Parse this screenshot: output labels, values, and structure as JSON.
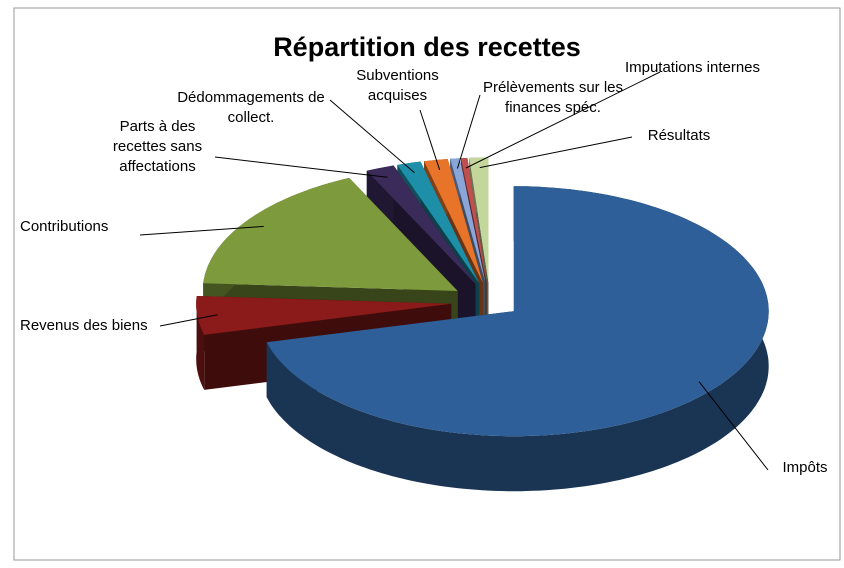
{
  "chart_data": {
    "type": "pie",
    "title": "Répartition des recettes",
    "categories": [
      "Impôts",
      "Revenus des biens",
      "Contributions",
      "Parts à des recettes sans affectations",
      "Dédommagements de collect.",
      "Subventions acquises",
      "Prélèvements sur les finances spéc.",
      "Imputations internes",
      "Résultats"
    ],
    "values": [
      71,
      5,
      17,
      1.8,
      1.5,
      1.5,
      0.6,
      0.4,
      1.2
    ],
    "colors": [
      "#2f5f98",
      "#8b1a1a",
      "#7d9a3c",
      "#3b2b5a",
      "#1e8fa8",
      "#e8742a",
      "#8aa6d8",
      "#c0504d",
      "#c3d69b"
    ]
  }
}
